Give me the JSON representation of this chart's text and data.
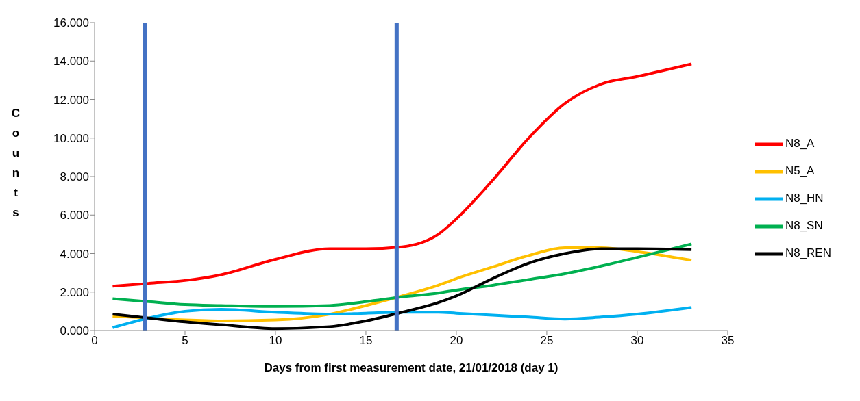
{
  "chart_data": {
    "type": "line",
    "xlabel": "Days from first measurement date, 21/01/2018 (day 1)",
    "ylabel": "Counts",
    "x": [
      1,
      3,
      5,
      7,
      10,
      13,
      15,
      17,
      19,
      20,
      22,
      24,
      26,
      28,
      30,
      33
    ],
    "series": [
      {
        "name": "N8_A",
        "color": "#ff0000",
        "values": [
          2.3,
          2.45,
          2.6,
          2.9,
          3.7,
          4.25,
          4.25,
          4.35,
          5.0,
          5.8,
          7.8,
          10.0,
          11.8,
          12.8,
          13.2,
          13.85
        ]
      },
      {
        "name": "N5_A",
        "color": "#ffc000",
        "values": [
          0.75,
          0.65,
          0.55,
          0.5,
          0.55,
          0.85,
          1.3,
          1.8,
          2.35,
          2.7,
          3.3,
          3.9,
          4.3,
          4.3,
          4.1,
          3.65
        ]
      },
      {
        "name": "N8_HN",
        "color": "#00b0f0",
        "values": [
          0.15,
          0.65,
          1.0,
          1.1,
          0.95,
          0.85,
          0.9,
          0.95,
          0.95,
          0.9,
          0.8,
          0.7,
          0.6,
          0.7,
          0.85,
          1.2
        ]
      },
      {
        "name": "N8_SN",
        "color": "#00b050",
        "values": [
          1.65,
          1.5,
          1.35,
          1.3,
          1.25,
          1.3,
          1.5,
          1.75,
          1.95,
          2.1,
          2.35,
          2.65,
          2.95,
          3.35,
          3.8,
          4.5
        ]
      },
      {
        "name": "N8_REN",
        "color": "#000000",
        "values": [
          0.85,
          0.65,
          0.45,
          0.3,
          0.1,
          0.2,
          0.5,
          0.95,
          1.45,
          1.8,
          2.7,
          3.5,
          4.0,
          4.25,
          4.25,
          4.2
        ]
      }
    ],
    "xlim": [
      0,
      35
    ],
    "xticks": [
      0,
      5,
      10,
      15,
      20,
      25,
      30,
      35
    ],
    "ylim": [
      0,
      16
    ],
    "yticks": [
      {
        "value": 0,
        "label": "0.000"
      },
      {
        "value": 2,
        "label": "2.000"
      },
      {
        "value": 4,
        "label": "4.000"
      },
      {
        "value": 6,
        "label": "6.000"
      },
      {
        "value": 8,
        "label": "8.000"
      },
      {
        "value": 10,
        "label": "10.000"
      },
      {
        "value": 12,
        "label": "12.000"
      },
      {
        "value": 14,
        "label": "14.000"
      },
      {
        "value": 16,
        "label": "16.000"
      }
    ],
    "ref_lines": [
      {
        "axis": "x",
        "value": 2.8,
        "color": "#4472c4"
      },
      {
        "axis": "x",
        "value": 16.7,
        "color": "#4472c4"
      }
    ],
    "grid": false,
    "legend": "right",
    "marker": "none",
    "line_style": "solid"
  }
}
